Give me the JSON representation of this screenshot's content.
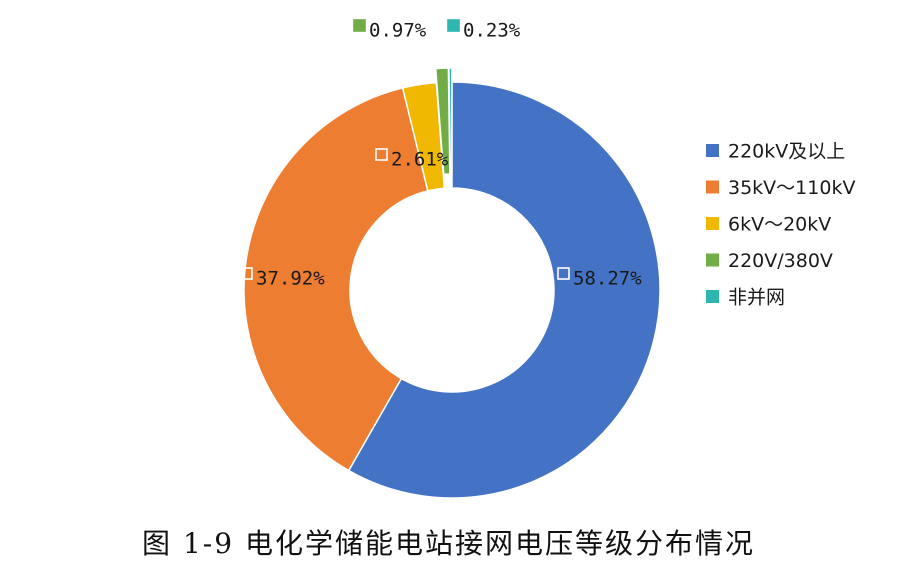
{
  "chart_data": {
    "type": "pie",
    "donut": true,
    "categories": [
      "220kV及以上",
      "35kV～110kV",
      "6kV～20kV",
      "220V/380V",
      "非并网"
    ],
    "values": [
      58.27,
      37.92,
      2.61,
      0.97,
      0.23
    ],
    "data_labels": [
      "58.27%",
      "37.92%",
      "2.61%",
      "0.97%",
      "0.23%"
    ],
    "colors": [
      "#4472C4",
      "#ED7D31",
      "#F0B800",
      "#70AD47",
      "#2EB6B0"
    ],
    "legend_position": "right",
    "exploded_slices": [
      "220V/380V",
      "非并网"
    ]
  },
  "caption": "图 1-9 电化学储能电站接网电压等级分布情况"
}
